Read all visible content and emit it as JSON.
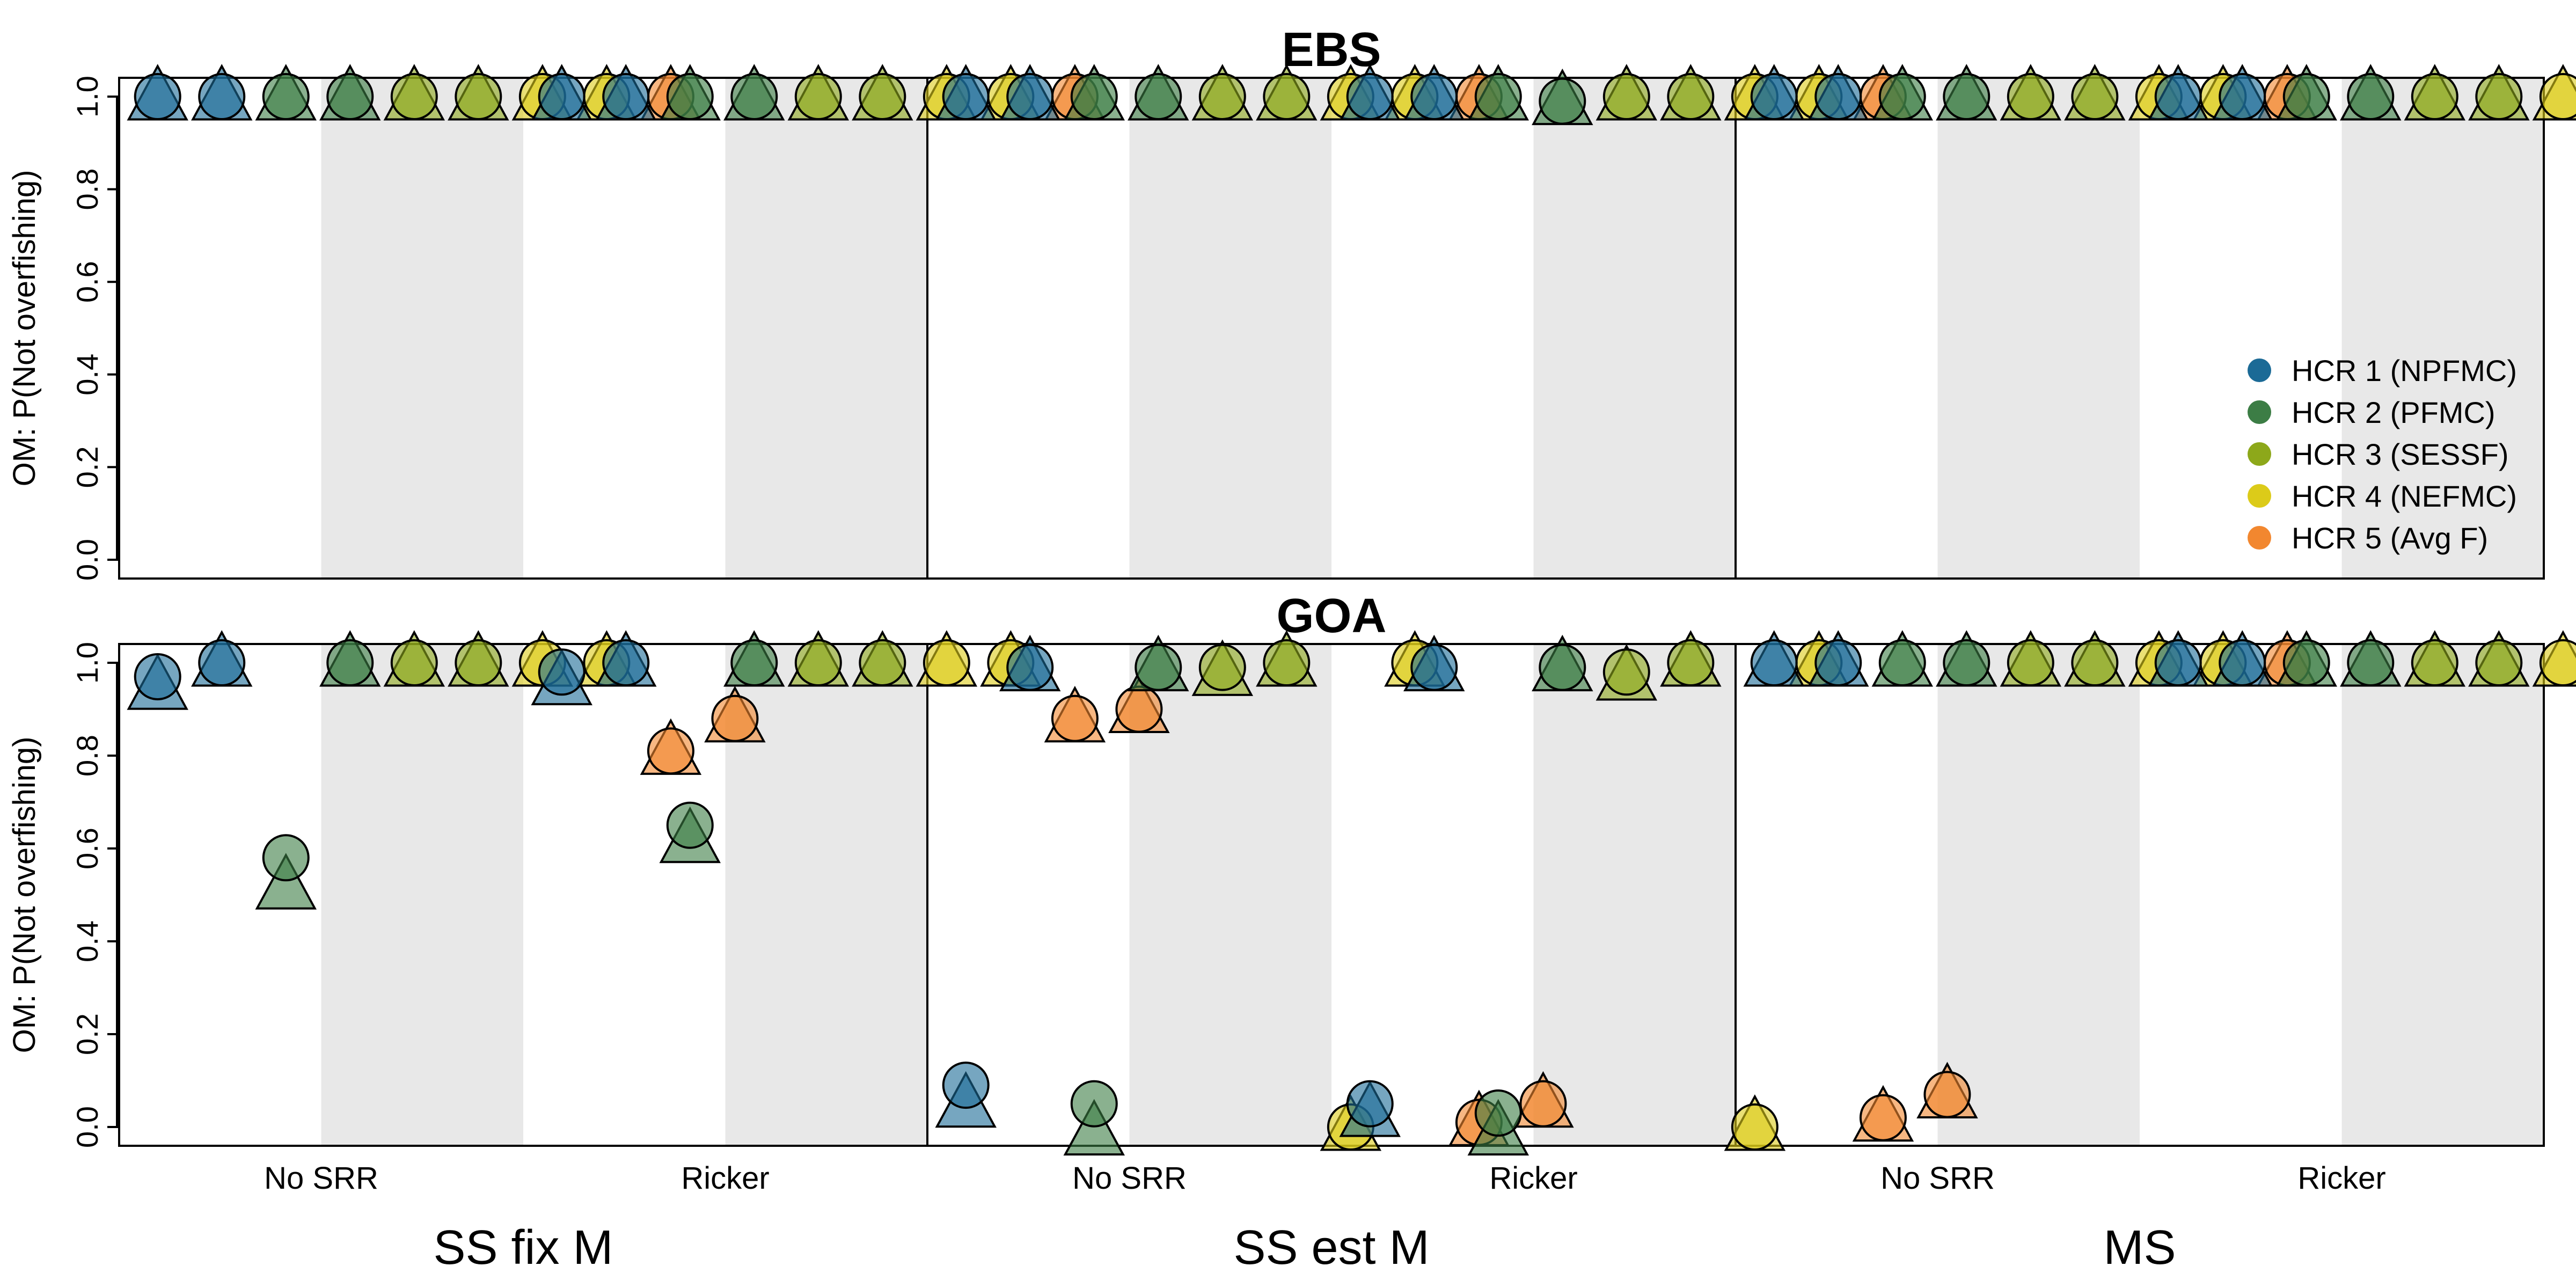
{
  "chart_data": {
    "type": "scatter",
    "ylabel": "OM: P(Not overfishing)",
    "ylim": [
      0,
      1
    ],
    "yticks": [
      "0.0",
      "0.2",
      "0.4",
      "0.6",
      "0.8",
      "1.0"
    ],
    "models": [
      "SS fix M",
      "SS est M",
      "MS"
    ],
    "conditions": [
      "No SRR",
      "Ricker"
    ],
    "legend": {
      "position": "right",
      "entries": [
        {
          "label": "HCR 1 (NPFMC)",
          "color": "#1b6a96"
        },
        {
          "label": "HCR 2 (PFMC)",
          "color": "#3c7d45"
        },
        {
          "label": "HCR 3 (SESSF)",
          "color": "#8da81a"
        },
        {
          "label": "HCR 4 (NEFMC)",
          "color": "#dccb19"
        },
        {
          "label": "HCR 5 (Avg F)",
          "color": "#f2872f"
        }
      ]
    },
    "marker_shapes": [
      "circle",
      "triangle"
    ],
    "panels": [
      {
        "title": "EBS",
        "groups": [
          {
            "model": "SS fix M",
            "condition": "No SRR",
            "circle": [
              [
                1,
                1
              ],
              [
                1,
                1
              ],
              [
                1,
                1
              ],
              [
                1,
                1
              ],
              [
                1
              ]
            ],
            "triangle": [
              [
                1,
                1
              ],
              [
                1,
                1
              ],
              [
                1,
                1
              ],
              [
                1,
                1
              ],
              [
                1
              ]
            ]
          },
          {
            "model": "SS fix M",
            "condition": "Ricker",
            "circle": [
              [
                1,
                1
              ],
              [
                1,
                1
              ],
              [
                1,
                1
              ],
              [
                1,
                1
              ],
              [
                1
              ]
            ],
            "triangle": [
              [
                1,
                1
              ],
              [
                1,
                1
              ],
              [
                1,
                1
              ],
              [
                1,
                1
              ],
              [
                1
              ]
            ]
          },
          {
            "model": "SS est M",
            "condition": "No SRR",
            "circle": [
              [
                1,
                1
              ],
              [
                1,
                1
              ],
              [
                1,
                1
              ],
              [
                1,
                1
              ],
              [
                1
              ]
            ],
            "triangle": [
              [
                1,
                1
              ],
              [
                1,
                1
              ],
              [
                1,
                1
              ],
              [
                1,
                1
              ],
              [
                1
              ]
            ]
          },
          {
            "model": "SS est M",
            "condition": "Ricker",
            "circle": [
              [
                1,
                1
              ],
              [
                1,
                0.99
              ],
              [
                1,
                1
              ],
              [
                1,
                1
              ],
              [
                1
              ]
            ],
            "triangle": [
              [
                1,
                1
              ],
              [
                1,
                0.99
              ],
              [
                1,
                1
              ],
              [
                1,
                1
              ],
              [
                1
              ]
            ]
          },
          {
            "model": "MS",
            "condition": "No SRR",
            "circle": [
              [
                1,
                1
              ],
              [
                1,
                1
              ],
              [
                1,
                1
              ],
              [
                1,
                1
              ],
              [
                1
              ]
            ],
            "triangle": [
              [
                1,
                1
              ],
              [
                1,
                1
              ],
              [
                1,
                1
              ],
              [
                1,
                1
              ],
              [
                1
              ]
            ]
          },
          {
            "model": "MS",
            "condition": "Ricker",
            "circle": [
              [
                1,
                1
              ],
              [
                1,
                1
              ],
              [
                1,
                1
              ],
              [
                1,
                1
              ],
              [
                1
              ]
            ],
            "triangle": [
              [
                1,
                1
              ],
              [
                1,
                1
              ],
              [
                1,
                1
              ],
              [
                1,
                1
              ],
              [
                1
              ]
            ]
          }
        ]
      },
      {
        "title": "GOA",
        "groups": [
          {
            "model": "SS fix M",
            "condition": "No SRR",
            "circle": [
              [
                0.97,
                1
              ],
              [
                0.58,
                1
              ],
              [
                1,
                1
              ],
              [
                1,
                1
              ],
              [
                0.81,
                0.88
              ]
            ],
            "triangle": [
              [
                0.95,
                1
              ],
              [
                0.52,
                1
              ],
              [
                1,
                1
              ],
              [
                1,
                1
              ],
              [
                0.81,
                0.88
              ]
            ]
          },
          {
            "model": "SS fix M",
            "condition": "Ricker",
            "circle": [
              [
                0.98,
                1
              ],
              [
                0.65,
                1
              ],
              [
                1,
                1
              ],
              [
                1,
                1
              ],
              [
                0.88,
                0.9
              ]
            ],
            "triangle": [
              [
                0.96,
                1
              ],
              [
                0.62,
                1
              ],
              [
                1,
                1
              ],
              [
                1,
                1
              ],
              [
                0.88,
                0.9
              ]
            ]
          },
          {
            "model": "SS est M",
            "condition": "No SRR",
            "circle": [
              [
                0.09,
                0.99
              ],
              [
                0.05,
                0.99
              ],
              [
                0.99,
                1
              ],
              [
                0,
                1
              ],
              [
                0.01,
                0.05
              ]
            ],
            "triangle": [
              [
                0.05,
                0.99
              ],
              [
                -0.01,
                0.99
              ],
              [
                0.98,
                1
              ],
              [
                0,
                1
              ],
              [
                0.01,
                0.05
              ]
            ]
          },
          {
            "model": "SS est M",
            "condition": "Ricker",
            "circle": [
              [
                0.05,
                0.99
              ],
              [
                0.03,
                0.99
              ],
              [
                0.98,
                1
              ],
              [
                0,
                1
              ],
              [
                0.02,
                0.07
              ]
            ],
            "triangle": [
              [
                0.03,
                0.99
              ],
              [
                -0.01,
                0.99
              ],
              [
                0.97,
                1
              ],
              [
                0,
                1
              ],
              [
                0.02,
                0.07
              ]
            ]
          },
          {
            "model": "MS",
            "condition": "No SRR",
            "circle": [
              [
                1,
                1
              ],
              [
                1,
                1
              ],
              [
                1,
                1
              ],
              [
                1,
                1
              ],
              [
                1
              ]
            ],
            "triangle": [
              [
                1,
                1
              ],
              [
                1,
                1
              ],
              [
                1,
                1
              ],
              [
                1,
                1
              ],
              [
                1
              ]
            ]
          },
          {
            "model": "MS",
            "condition": "Ricker",
            "circle": [
              [
                1,
                1
              ],
              [
                1,
                1
              ],
              [
                1,
                1
              ],
              [
                1,
                1
              ],
              [
                1
              ]
            ],
            "triangle": [
              [
                1,
                1
              ],
              [
                1,
                1
              ],
              [
                1,
                1
              ],
              [
                1,
                1
              ],
              [
                1
              ]
            ]
          }
        ]
      }
    ]
  }
}
